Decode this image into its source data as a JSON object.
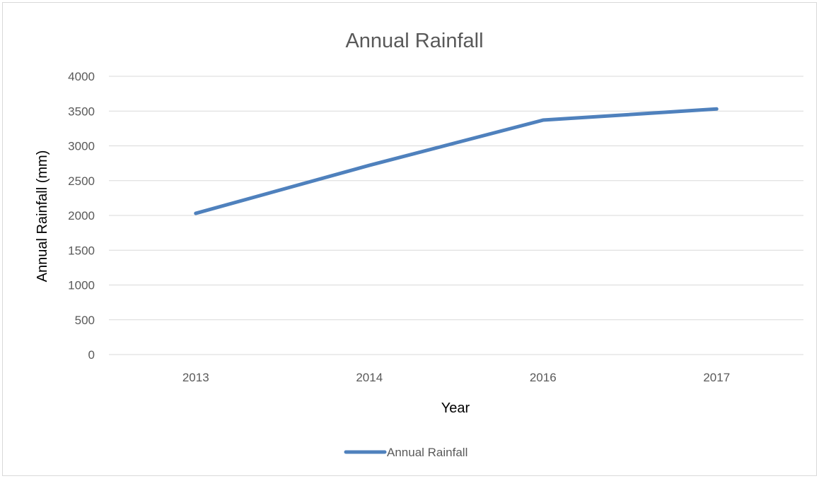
{
  "chart_data": {
    "type": "line",
    "title": "Annual Rainfall",
    "xlabel": "Year",
    "ylabel": "Annual Rainfall (mm)",
    "categories": [
      "2013",
      "2014",
      "2016",
      "2017"
    ],
    "series": [
      {
        "name": "Annual Rainfall",
        "values": [
          2030,
          2720,
          3370,
          3530
        ],
        "color": "#4f81bd"
      }
    ],
    "ylim": [
      0,
      4000
    ],
    "yticks": [
      0,
      500,
      1000,
      1500,
      2000,
      2500,
      3000,
      3500,
      4000
    ],
    "grid": true,
    "legend_position": "bottom",
    "gridline_color": "#d9d9d9",
    "text_color": "#595959"
  }
}
